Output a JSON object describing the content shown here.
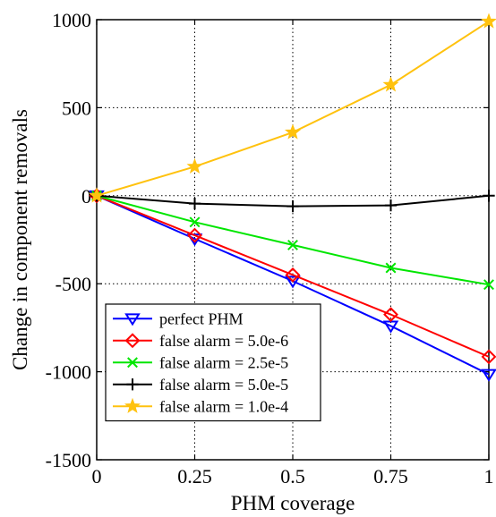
{
  "chart_data": {
    "type": "line",
    "title": "",
    "xlabel": "PHM coverage",
    "ylabel": "Change in component removals",
    "xlim": [
      0,
      1
    ],
    "ylim": [
      -1500,
      1000
    ],
    "grid": true,
    "legend_position": "bottom-left",
    "x": [
      0,
      0.25,
      0.5,
      0.75,
      1
    ],
    "x_tick_values": [
      0,
      0.25,
      0.5,
      0.75,
      1
    ],
    "x_tick_labels": [
      "0",
      "0.25",
      "0.5",
      "0.75",
      "1"
    ],
    "y_tick_values": [
      -1500,
      -1000,
      -500,
      0,
      500,
      1000
    ],
    "y_tick_labels": [
      "-1500",
      "-1000",
      "-500",
      "0",
      "500",
      "1000"
    ],
    "series": [
      {
        "name": "perfect PHM",
        "color": "#0000ff",
        "marker": "triangle-down",
        "values": [
          0,
          -245,
          -485,
          -740,
          -1015
        ]
      },
      {
        "name": "false alarm = 5.0e-6",
        "color": "#ff0000",
        "marker": "diamond",
        "values": [
          0,
          -225,
          -450,
          -675,
          -915
        ]
      },
      {
        "name": "false alarm = 2.5e-5",
        "color": "#00e600",
        "marker": "x",
        "values": [
          0,
          -150,
          -280,
          -410,
          -505
        ]
      },
      {
        "name": "false alarm = 5.0e-5",
        "color": "#000000",
        "marker": "plus",
        "values": [
          0,
          -45,
          -60,
          -55,
          0
        ]
      },
      {
        "name": "false alarm = 1.0e-4",
        "color": "#ffc20e",
        "marker": "star",
        "values": [
          0,
          165,
          360,
          630,
          990
        ]
      }
    ]
  }
}
